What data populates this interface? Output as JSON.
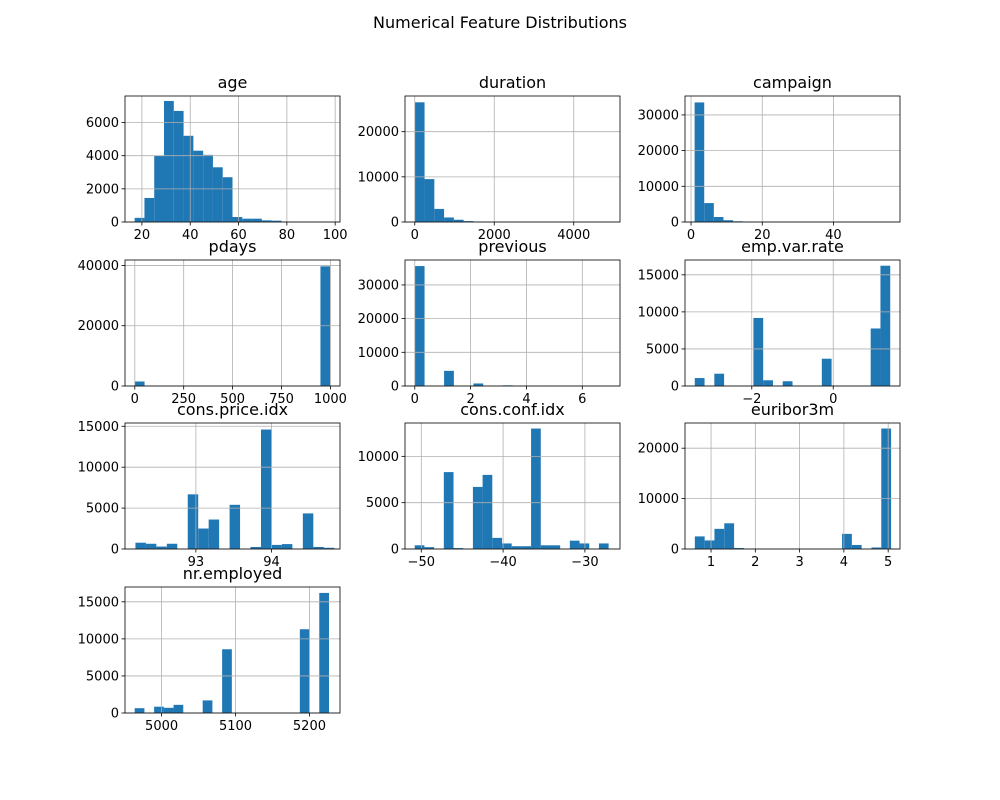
{
  "figure": {
    "title": "Numerical Feature Distributions"
  },
  "colors": {
    "bar": "#1f77b4",
    "grid": "#b0b0b0",
    "axis": "#000000",
    "text": "#000000"
  },
  "chart_data": [
    {
      "type": "bar",
      "title": "age",
      "xlabel": "",
      "ylabel": "",
      "grid": true,
      "bin_start": 17,
      "bin_width": 4.05,
      "xlim": [
        13,
        102
      ],
      "ylim": [
        0,
        7600
      ],
      "xticks": [
        20,
        40,
        60,
        80,
        100
      ],
      "yticks": [
        0,
        2000,
        4000,
        6000
      ],
      "values": [
        250,
        1450,
        4000,
        7300,
        6700,
        5200,
        4300,
        4050,
        3300,
        2700,
        300,
        200,
        200,
        100,
        80,
        30,
        10,
        5,
        3,
        2
      ]
    },
    {
      "type": "bar",
      "title": "duration",
      "xlabel": "",
      "ylabel": "",
      "grid": true,
      "bin_start": 0,
      "bin_width": 245.9,
      "xlim": [
        -246,
        5164
      ],
      "ylim": [
        0,
        27900
      ],
      "xticks": [
        0,
        2000,
        4000
      ],
      "yticks": [
        0,
        10000,
        20000
      ],
      "values": [
        26500,
        9500,
        2900,
        1000,
        500,
        200,
        80,
        40,
        20,
        10,
        5,
        3,
        2,
        1,
        1,
        1,
        0,
        0,
        0,
        1
      ]
    },
    {
      "type": "bar",
      "title": "campaign",
      "xlabel": "",
      "ylabel": "",
      "grid": true,
      "bin_start": 1,
      "bin_width": 2.7,
      "xlim": [
        -1.7,
        58.7
      ],
      "ylim": [
        0,
        35300
      ],
      "xticks": [
        0,
        20,
        40
      ],
      "yticks": [
        0,
        10000,
        20000,
        30000
      ],
      "values": [
        33500,
        5300,
        1400,
        500,
        200,
        100,
        50,
        20,
        10,
        5,
        3,
        2,
        1,
        1,
        0,
        0,
        0,
        0,
        0,
        1
      ]
    },
    {
      "type": "bar",
      "title": "pdays",
      "xlabel": "",
      "ylabel": "",
      "grid": true,
      "bin_start": 0,
      "bin_width": 49.95,
      "xlim": [
        -50,
        1049
      ],
      "ylim": [
        0,
        41800
      ],
      "xticks": [
        0,
        250,
        500,
        750,
        1000
      ],
      "yticks": [
        0,
        20000,
        40000
      ],
      "values": [
        1500,
        10,
        0,
        0,
        0,
        0,
        0,
        0,
        0,
        0,
        0,
        0,
        0,
        0,
        0,
        0,
        0,
        0,
        0,
        39700
      ]
    },
    {
      "type": "bar",
      "title": "previous",
      "xlabel": "",
      "ylabel": "",
      "grid": true,
      "bin_start": 0,
      "bin_width": 0.35,
      "xlim": [
        -0.35,
        7.35
      ],
      "ylim": [
        0,
        37400
      ],
      "xticks": [
        0,
        2,
        4,
        6
      ],
      "yticks": [
        0,
        10000,
        20000,
        30000
      ],
      "values": [
        35600,
        0,
        0,
        4500,
        0,
        0,
        750,
        0,
        0,
        200,
        0,
        0,
        0,
        70,
        0,
        0,
        0,
        0,
        0,
        5
      ]
    },
    {
      "type": "bar",
      "title": "emp.var.rate",
      "xlabel": "",
      "ylabel": "",
      "grid": true,
      "bin_start": -3.4,
      "bin_width": 0.24,
      "xlim": [
        -3.64,
        1.64
      ],
      "ylim": [
        0,
        17000
      ],
      "xticks": [
        -2,
        0
      ],
      "yticks": [
        0,
        5000,
        10000,
        15000
      ],
      "values": [
        1070,
        0,
        1660,
        0,
        0,
        0,
        9180,
        770,
        0,
        640,
        0,
        0,
        0,
        3680,
        0,
        0,
        0,
        0,
        7760,
        16230
      ]
    },
    {
      "type": "bar",
      "title": "cons.price.idx",
      "xlabel": "",
      "ylabel": "",
      "grid": true,
      "bin_start": 92.201,
      "bin_width": 0.1383,
      "xlim": [
        92.063,
        94.905
      ],
      "ylim": [
        0,
        15400
      ],
      "xticks": [
        93,
        94
      ],
      "yticks": [
        0,
        5000,
        10000,
        15000
      ],
      "values": [
        770,
        640,
        300,
        640,
        0,
        6680,
        2500,
        3600,
        0,
        5400,
        0,
        250,
        14600,
        500,
        600,
        0,
        4350,
        250,
        150,
        0
      ]
    },
    {
      "type": "bar",
      "title": "cons.conf.idx",
      "xlabel": "",
      "ylabel": "",
      "grid": true,
      "bin_start": -50.8,
      "bin_width": 1.185,
      "xlim": [
        -51.99,
        -25.71
      ],
      "ylim": [
        0,
        13600
      ],
      "xticks": [
        -50,
        -40,
        -30
      ],
      "yticks": [
        0,
        5000,
        10000
      ],
      "values": [
        400,
        200,
        0,
        8300,
        100,
        0,
        6700,
        8000,
        1200,
        600,
        300,
        300,
        13000,
        400,
        400,
        0,
        900,
        600,
        0,
        600
      ]
    },
    {
      "type": "bar",
      "title": "euribor3m",
      "xlabel": "",
      "ylabel": "",
      "grid": true,
      "bin_start": 0.634,
      "bin_width": 0.2216,
      "xlim": [
        0.412,
        5.267
      ],
      "ylim": [
        0,
        25000
      ],
      "xticks": [
        1,
        2,
        3,
        4,
        5
      ],
      "yticks": [
        0,
        10000,
        20000
      ],
      "values": [
        2500,
        1700,
        4000,
        5100,
        200,
        30,
        10,
        10,
        5,
        5,
        5,
        5,
        5,
        10,
        5,
        3000,
        800,
        10,
        300,
        23900
      ]
    },
    {
      "type": "bar",
      "title": "nr.employed",
      "xlabel": "",
      "ylabel": "",
      "grid": true,
      "bin_start": 4963.6,
      "bin_width": 13.14,
      "xlim": [
        4950.5,
        5241.3
      ],
      "ylim": [
        0,
        17000
      ],
      "xticks": [
        5000,
        5100,
        5200
      ],
      "yticks": [
        0,
        5000,
        10000,
        15000
      ],
      "values": [
        650,
        0,
        850,
        700,
        1100,
        0,
        0,
        1700,
        0,
        8600,
        0,
        0,
        0,
        0,
        0,
        0,
        0,
        11300,
        0,
        16200
      ]
    }
  ]
}
